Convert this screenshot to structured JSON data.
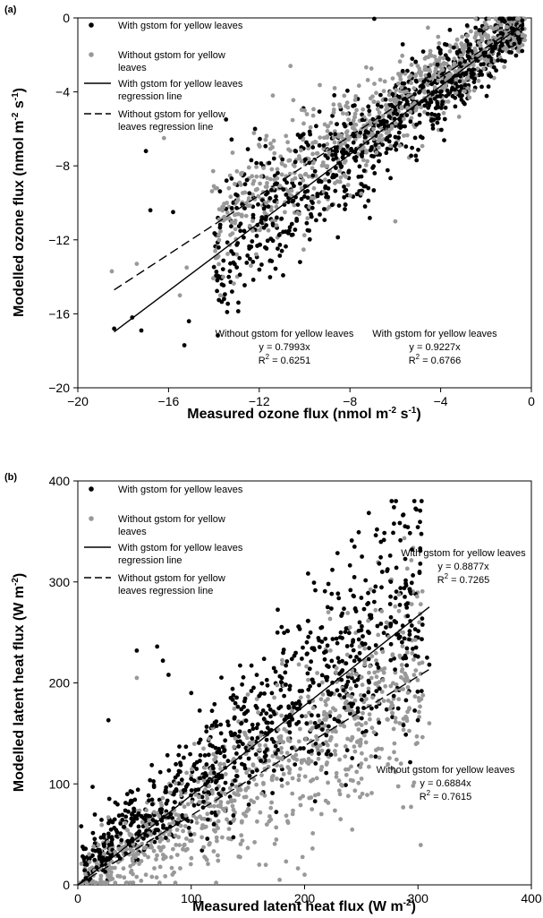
{
  "chart_data": [
    {
      "panel_label": "(a)",
      "type": "scatter",
      "xlabel": {
        "base": "Measured ozone flux (nmol m",
        "exp1": "-2",
        "mid": " s",
        "exp2": "-1",
        "end": ")"
      },
      "ylabel": {
        "base": "Modelled ozone flux (nmol m",
        "exp1": "-2",
        "mid": " s",
        "exp2": "-1",
        "end": ")"
      },
      "xlim": [
        -20,
        0
      ],
      "ylim": [
        -20,
        0
      ],
      "xticks": [
        -20,
        -16,
        -12,
        -8,
        -4,
        0
      ],
      "yticks": [
        -20,
        -16,
        -12,
        -8,
        -4,
        0
      ],
      "legend": [
        {
          "marker": "black-dot",
          "lines": [
            "With gstom for yellow leaves"
          ]
        },
        {
          "marker": "grey-dot",
          "lines": [
            "Without gstom for yellow",
            "leaves"
          ]
        },
        {
          "marker": "solid-line",
          "lines": [
            "With gstom for yellow leaves",
            "regression line"
          ]
        },
        {
          "marker": "dashed-line",
          "lines": [
            "Without gstom for yellow",
            "leaves regression line"
          ]
        }
      ],
      "series": [
        {
          "name": "With gstom for yellow leaves",
          "color": "#000000",
          "sample_points": [
            [
              -18.4,
              -16.8
            ],
            [
              -17.6,
              -16.2
            ],
            [
              -17.2,
              -16.9
            ],
            [
              -15.3,
              -17.7
            ],
            [
              -15.1,
              -16.4
            ],
            [
              -13.2,
              -14.8
            ],
            [
              -17.0,
              -7.2
            ],
            [
              -16.8,
              -10.4
            ],
            [
              -15.8,
              -10.5
            ],
            [
              -12.5,
              -7.1
            ],
            [
              -11.0,
              -12.6
            ],
            [
              -10.2,
              -13.2
            ],
            [
              -9.8,
              -11.5
            ],
            [
              -7.2,
              -6.2
            ],
            [
              -5.8,
              -4.6
            ],
            [
              -4.2,
              -4.0
            ],
            [
              -3.5,
              -3.4
            ],
            [
              -2.1,
              -1.9
            ]
          ]
        },
        {
          "name": "Without gstom for yellow leaves",
          "color": "#999999",
          "sample_points": [
            [
              -18.5,
              -13.7
            ],
            [
              -17.4,
              -13.3
            ],
            [
              -15.5,
              -15.0
            ],
            [
              -15.2,
              -13.5
            ],
            [
              -16.2,
              -6.5
            ],
            [
              -14.0,
              -9.1
            ],
            [
              -11.4,
              -4.2
            ],
            [
              -11.5,
              -6.8
            ],
            [
              -10.0,
              -5.0
            ],
            [
              -7.5,
              -9.5
            ],
            [
              -6.0,
              -11.0
            ],
            [
              -4.5,
              -2.8
            ],
            [
              -2.4,
              -2.0
            ],
            [
              -1.0,
              -1.0
            ],
            [
              -0.6,
              -0.8
            ]
          ]
        }
      ],
      "regression": [
        {
          "series": "With gstom for yellow leaves",
          "style": "solid",
          "slope": 0.9227,
          "x_range": [
            -18.4,
            -0.4
          ]
        },
        {
          "series": "Without gstom for yellow leaves",
          "style": "dashed",
          "slope": 0.7993,
          "x_range": [
            -18.4,
            -0.4
          ]
        }
      ],
      "annotations": [
        {
          "lines": [
            "Without gstom for yellow leaves",
            "y = 0.7993x",
            "R2 = 0.6251"
          ]
        },
        {
          "lines": [
            "With gstom for yellow leaves",
            "y = 0.9227x",
            "R2 = 0.6766"
          ]
        }
      ]
    },
    {
      "panel_label": "(b)",
      "type": "scatter",
      "xlabel": {
        "base": "Measured latent heat flux (W m",
        "exp1": "-2",
        "end": ")"
      },
      "ylabel": {
        "base": "Modelled latent heat flux (W m",
        "exp1": "-2",
        "end": ")"
      },
      "xlim": [
        0,
        400
      ],
      "ylim": [
        0,
        400
      ],
      "xticks": [
        0,
        100,
        200,
        300,
        400
      ],
      "yticks": [
        0,
        100,
        200,
        300,
        400
      ],
      "legend": [
        {
          "marker": "black-dot",
          "lines": [
            "With gstom for yellow leaves"
          ]
        },
        {
          "marker": "grey-dot",
          "lines": [
            "Without gstom for yellow",
            "leaves"
          ]
        },
        {
          "marker": "solid-line",
          "lines": [
            "With gstom for yellow leaves",
            "regression line"
          ]
        },
        {
          "marker": "dashed-line",
          "lines": [
            "Without gstom for yellow",
            "leaves regression line"
          ]
        }
      ],
      "series": [
        {
          "name": "With gstom for yellow leaves",
          "color": "#000000",
          "sample_points": [
            [
              13,
              97
            ],
            [
              27,
              163
            ],
            [
              52,
              232
            ],
            [
              70,
              236
            ],
            [
              75,
              222
            ],
            [
              80,
              208
            ],
            [
              100,
              190
            ],
            [
              221,
              298
            ],
            [
              256,
              289
            ],
            [
              300,
              226
            ],
            [
              308,
              225
            ],
            [
              310,
              218
            ],
            [
              180,
              205
            ],
            [
              140,
              130
            ],
            [
              120,
              60
            ],
            [
              30,
              40
            ],
            [
              8,
              20
            ],
            [
              3,
              58
            ]
          ]
        },
        {
          "name": "Without gstom for yellow leaves",
          "color": "#999999",
          "sample_points": [
            [
              52,
              205
            ],
            [
              221,
              270
            ],
            [
              240,
              255
            ],
            [
              270,
              210
            ],
            [
              290,
              165
            ],
            [
              299,
              147
            ],
            [
              310,
              160
            ],
            [
              160,
              20
            ],
            [
              178,
              5
            ],
            [
              200,
              10
            ],
            [
              60,
              10
            ],
            [
              20,
              2
            ],
            [
              130,
              90
            ],
            [
              250,
              120
            ],
            [
              285,
              120
            ]
          ]
        }
      ],
      "regression": [
        {
          "series": "With gstom for yellow leaves",
          "style": "solid",
          "slope": 0.8877,
          "x_range": [
            0,
            310
          ]
        },
        {
          "series": "Without gstom for yellow leaves",
          "style": "dashed",
          "slope": 0.6884,
          "x_range": [
            0,
            310
          ]
        }
      ],
      "annotations": [
        {
          "lines": [
            "With gstom for yellow leaves",
            "y = 0.8877x",
            "R2 = 0.7265"
          ]
        },
        {
          "lines": [
            "Without gstom for yellow leaves",
            "y = 0.6884x",
            "R2 = 0.7615"
          ]
        }
      ]
    }
  ]
}
